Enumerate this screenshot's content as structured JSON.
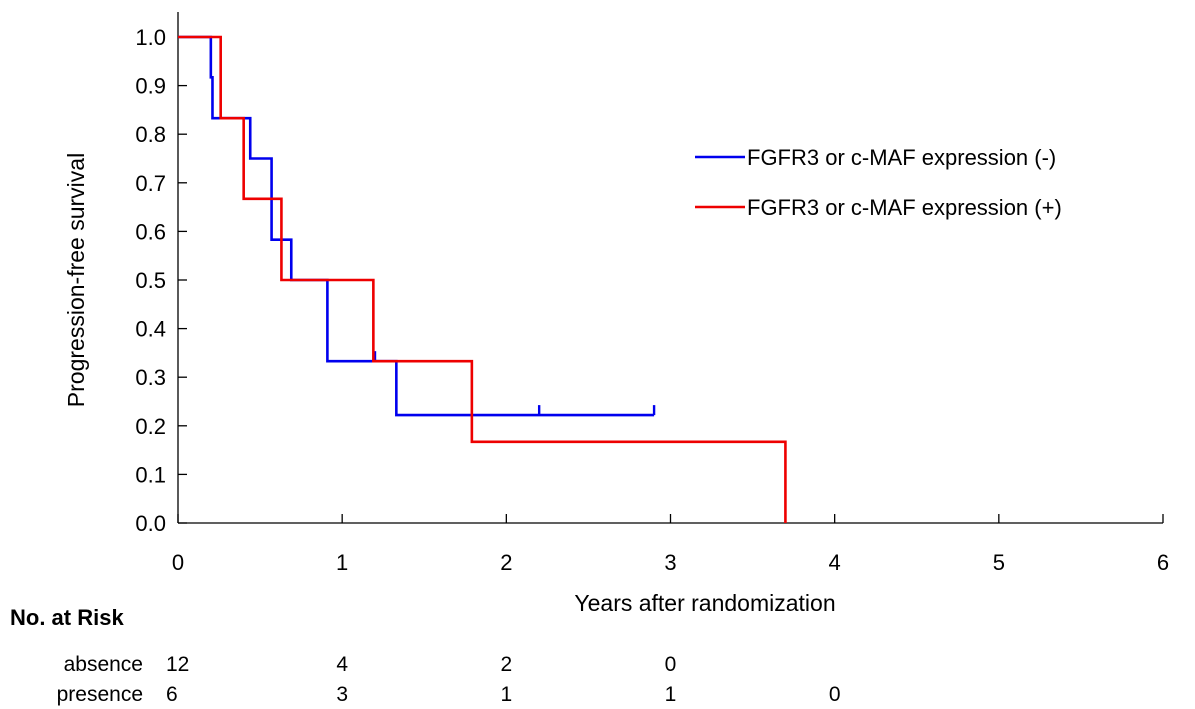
{
  "chart_data": {
    "type": "line",
    "subtype": "kaplan-meier-step",
    "title": "",
    "xlabel": "Years after randomization",
    "ylabel": "Progression-free survival",
    "xlim": [
      0,
      6
    ],
    "ylim": [
      0,
      1
    ],
    "x_ticks": [
      "0",
      "1",
      "2",
      "3",
      "4",
      "5",
      "6"
    ],
    "y_ticks": [
      "0.0",
      "0.1",
      "0.2",
      "0.3",
      "0.4",
      "0.5",
      "0.6",
      "0.7",
      "0.8",
      "0.9",
      "1.0"
    ],
    "grid": false,
    "legend_position": "right",
    "series": [
      {
        "name": "FGFR3 or c-MAF expression (-)",
        "color": "#0000ee",
        "steps": [
          [
            0,
            1.0
          ],
          [
            0.2,
            0.917
          ],
          [
            0.21,
            0.833
          ],
          [
            0.44,
            0.75
          ],
          [
            0.57,
            0.583
          ],
          [
            0.69,
            0.5
          ],
          [
            0.91,
            0.333
          ],
          [
            1.33,
            0.222
          ]
        ],
        "end_x": 2.9,
        "censored": [
          [
            1.2,
            0.333
          ],
          [
            2.2,
            0.222
          ],
          [
            2.9,
            0.222
          ]
        ]
      },
      {
        "name": "FGFR3 or c-MAF expression (+)",
        "color": "#ee0000",
        "steps": [
          [
            0,
            1.0
          ],
          [
            0.26,
            0.833
          ],
          [
            0.4,
            0.667
          ],
          [
            0.63,
            0.5
          ],
          [
            1.19,
            0.333
          ],
          [
            1.79,
            0.167
          ],
          [
            3.7,
            0.0
          ]
        ],
        "end_x": 3.7,
        "censored": []
      }
    ],
    "risk_table": {
      "title": "No. at Risk",
      "rows": [
        {
          "label": "absence",
          "counts": [
            "12",
            "4",
            "2",
            "0"
          ]
        },
        {
          "label": "presence",
          "counts": [
            "6",
            "3",
            "1",
            "1",
            "0"
          ]
        }
      ]
    }
  }
}
